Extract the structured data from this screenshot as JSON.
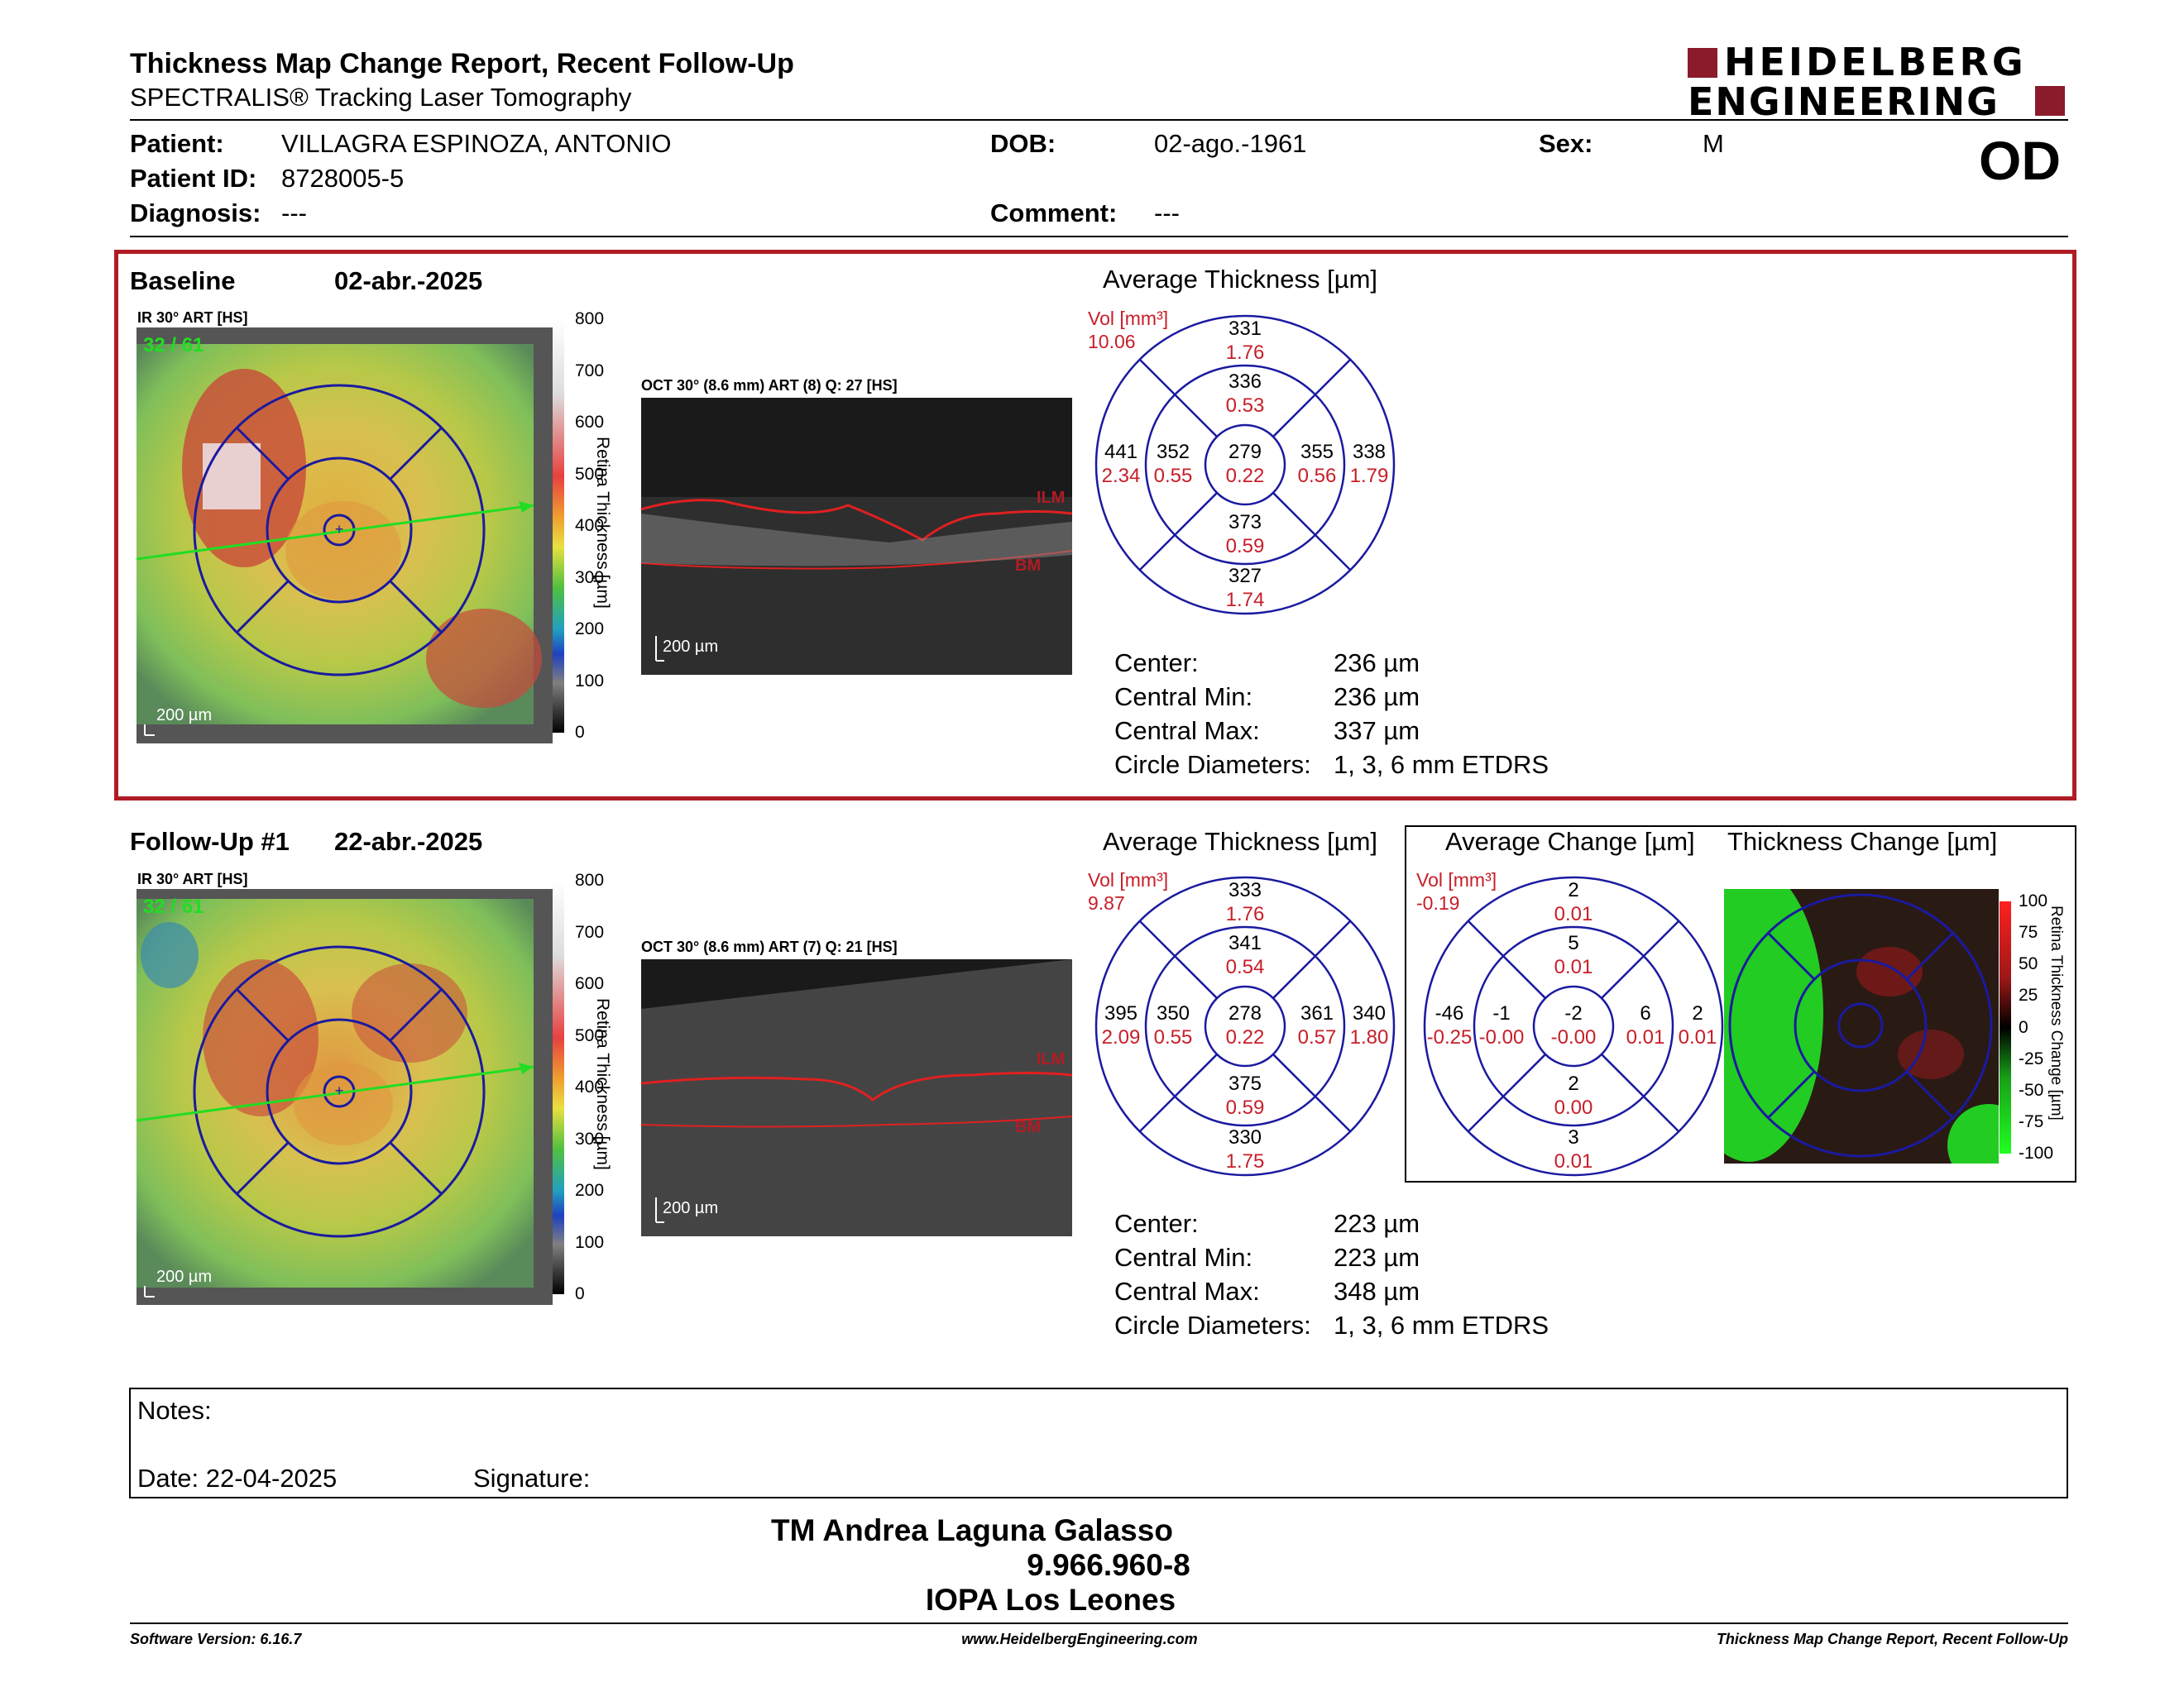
{
  "header": {
    "title": "Thickness Map Change Report, Recent Follow-Up",
    "subtitle": "SPECTRALIS® Tracking Laser Tomography",
    "logo_line1": "HEIDELBERG",
    "logo_line2": "ENGINEERING",
    "eye": "OD"
  },
  "patient": {
    "name_label": "Patient:",
    "name": "VILLAGRA ESPINOZA, ANTONIO",
    "id_label": "Patient ID:",
    "id": "8728005-5",
    "diagnosis_label": "Diagnosis:",
    "diagnosis": "---",
    "dob_label": "DOB:",
    "dob": "02-ago.-1961",
    "comment_label": "Comment:",
    "comment": "---",
    "sex_label": "Sex:",
    "sex": "M"
  },
  "baseline": {
    "label": "Baseline",
    "date": "02-abr.-2025",
    "ir_label": "IR 30° ART [HS]",
    "frame": "32 / 61",
    "scale_label": "200 µm",
    "colorbar_ticks": [
      "800",
      "700",
      "600",
      "500",
      "400",
      "300",
      "200",
      "100",
      "0"
    ],
    "colorbar_title": "Retina Thickness [µm]",
    "oct_label": "OCT 30° (8.6 mm) ART (8) Q: 27 [HS]",
    "oct_scale": "200 µm",
    "ilm": "ILM",
    "bm": "BM",
    "avg_title": "Average Thickness [µm]",
    "vol_label": "Vol [mm³]",
    "vol": "10.06",
    "etdrs": {
      "outer_sup": [
        "331",
        "1.76"
      ],
      "inner_sup": [
        "336",
        "0.53"
      ],
      "outer_temp": [
        "441",
        "2.34"
      ],
      "inner_temp": [
        "352",
        "0.55"
      ],
      "center": [
        "279",
        "0.22"
      ],
      "inner_nas": [
        "355",
        "0.56"
      ],
      "outer_nas": [
        "338",
        "1.79"
      ],
      "inner_inf": [
        "373",
        "0.59"
      ],
      "outer_inf": [
        "327",
        "1.74"
      ]
    },
    "stats": [
      {
        "label": "Center:",
        "value": "236 µm"
      },
      {
        "label": "Central Min:",
        "value": "236 µm"
      },
      {
        "label": "Central Max:",
        "value": "337 µm"
      },
      {
        "label": "Circle Diameters:",
        "value": "1, 3, 6 mm ETDRS"
      }
    ]
  },
  "followup": {
    "label": "Follow-Up #1",
    "date": "22-abr.-2025",
    "ir_label": "IR 30° ART [HS]",
    "frame": "32 / 61",
    "scale_label": "200 µm",
    "colorbar_ticks": [
      "800",
      "700",
      "600",
      "500",
      "400",
      "300",
      "200",
      "100",
      "0"
    ],
    "colorbar_title": "Retina Thickness [µm]",
    "oct_label": "OCT 30° (8.6 mm) ART (7) Q: 21 [HS]",
    "oct_scale": "200 µm",
    "ilm": "ILM",
    "bm": "BM",
    "avg_title": "Average Thickness [µm]",
    "vol_label": "Vol [mm³]",
    "vol": "9.87",
    "etdrs": {
      "outer_sup": [
        "333",
        "1.76"
      ],
      "inner_sup": [
        "341",
        "0.54"
      ],
      "outer_temp": [
        "395",
        "2.09"
      ],
      "inner_temp": [
        "350",
        "0.55"
      ],
      "center": [
        "278",
        "0.22"
      ],
      "inner_nas": [
        "361",
        "0.57"
      ],
      "outer_nas": [
        "340",
        "1.80"
      ],
      "inner_inf": [
        "375",
        "0.59"
      ],
      "outer_inf": [
        "330",
        "1.75"
      ]
    },
    "stats": [
      {
        "label": "Center:",
        "value": "223 µm"
      },
      {
        "label": "Central Min:",
        "value": "223 µm"
      },
      {
        "label": "Central Max:",
        "value": "348 µm"
      },
      {
        "label": "Circle Diameters:",
        "value": "1, 3, 6 mm ETDRS"
      }
    ],
    "change_title": "Average Change [µm]",
    "change_vol_label": "Vol [mm³]",
    "change_vol": "-0.19",
    "change": {
      "outer_sup": [
        "2",
        "0.01"
      ],
      "inner_sup": [
        "5",
        "0.01"
      ],
      "outer_temp": [
        "-46",
        "-0.25"
      ],
      "inner_temp": [
        "-1",
        "-0.00"
      ],
      "center": [
        "-2",
        "-0.00"
      ],
      "inner_nas": [
        "6",
        "0.01"
      ],
      "outer_nas": [
        "2",
        "0.01"
      ],
      "inner_inf": [
        "2",
        "0.00"
      ],
      "outer_inf": [
        "3",
        "0.01"
      ]
    },
    "thickness_change_title": "Thickness Change [µm]",
    "change_ticks": [
      "100",
      "75",
      "50",
      "25",
      "0",
      "-25",
      "-50",
      "-75",
      "-100"
    ],
    "change_colorbar_title": "Retina Thickness Change [µm]"
  },
  "notes": {
    "label": "Notes:",
    "date_label": "Date: 22-04-2025",
    "signature_label": "Signature:"
  },
  "signature": {
    "name": "TM Andrea Laguna Galasso",
    "id": "9.966.960-8",
    "org": "IOPA Los Leones"
  },
  "footer": {
    "version": "Software Version: 6.16.7",
    "website": "www.HeidelbergEngineering.com",
    "report": "Thickness Map Change Report, Recent Follow-Up"
  },
  "colors": {
    "frame_red": "#b01c24",
    "value_red": "#c81e28",
    "grid_blue": "#1a1aa0",
    "logo_red": "#8b1a2b"
  }
}
